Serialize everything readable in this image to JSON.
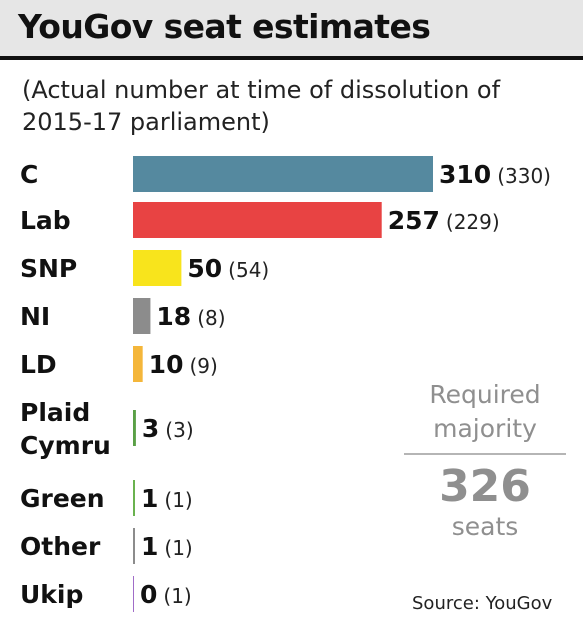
{
  "header": {
    "title": "YouGov seat estimates"
  },
  "chart_data": {
    "type": "bar",
    "orientation": "horizontal",
    "title": "YouGov seat estimates",
    "subtitle": "(Actual number at time of dissolution of 2015-17 parliament)",
    "categories": [
      "C",
      "Lab",
      "SNP",
      "NI",
      "LD",
      "Plaid Cymru",
      "Green",
      "Other",
      "Ukip"
    ],
    "category_lines": [
      [
        "C"
      ],
      [
        "Lab"
      ],
      [
        "SNP"
      ],
      [
        "NI"
      ],
      [
        "LD"
      ],
      [
        "Plaid",
        "Cymru"
      ],
      [
        "Green"
      ],
      [
        "Other"
      ],
      [
        "Ukip"
      ]
    ],
    "series": [
      {
        "values": [
          310,
          257,
          50,
          18,
          10,
          3,
          1,
          1,
          0
        ],
        "previous": [
          330,
          229,
          54,
          8,
          9,
          3,
          1,
          1,
          1
        ],
        "colors": [
          "#55899f",
          "#e84343",
          "#f8e41c",
          "#8c8c8c",
          "#f4b63a",
          "#5aa046",
          "#6ab24f",
          "#8c8c8c",
          "#a06cc8"
        ]
      }
    ],
    "xlim": [
      0,
      310
    ],
    "grid": false,
    "legend": "none"
  },
  "majority": {
    "label": "Required majority",
    "value": "326",
    "unit": "seats"
  },
  "source": "Source: YouGov"
}
